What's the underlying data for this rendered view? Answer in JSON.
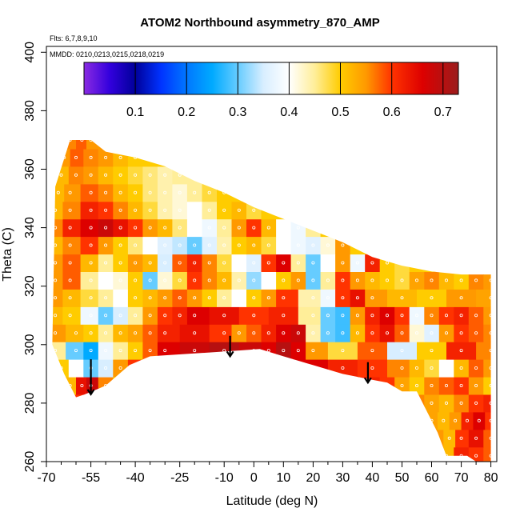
{
  "chart_data": {
    "type": "heatmap",
    "title": "ATOM2 Northbound asymmetry_870_AMP",
    "flights_note": "Flts: 6,7,8,9,10",
    "dates_note": "MMDD: 0210,0213,0215,0218,0219",
    "xlabel": "Latitude (deg N)",
    "ylabel": "Theta (C)",
    "xlim": [
      -70,
      82
    ],
    "ylim": [
      260,
      402
    ],
    "x_ticks": [
      -70,
      -55,
      -40,
      -25,
      -10,
      0,
      10,
      20,
      30,
      40,
      50,
      60,
      70,
      80
    ],
    "x_tick_labels": [
      "-70",
      "-55",
      "-40",
      "-25",
      "-10",
      "0",
      "10",
      "20",
      "30",
      "40",
      "50",
      "60",
      "70",
      "80"
    ],
    "x_minor_ticks": [
      -65,
      -60,
      -50,
      -45,
      -35,
      -30,
      -20,
      -15,
      -5,
      5,
      15,
      25,
      35,
      45,
      55,
      65,
      75
    ],
    "y_ticks": [
      260,
      280,
      300,
      320,
      340,
      360,
      380,
      400
    ],
    "y_tick_labels": [
      "260",
      "280",
      "300",
      "320",
      "340",
      "360",
      "380",
      "400"
    ],
    "colorbar": {
      "range": [
        0.0,
        0.73
      ],
      "ticks": [
        0.1,
        0.2,
        0.3,
        0.4,
        0.5,
        0.6,
        0.7
      ],
      "tick_labels": [
        "0.1",
        "0.2",
        "0.3",
        "0.4",
        "0.5",
        "0.6",
        "0.7"
      ],
      "stops": [
        {
          "v": 0.0,
          "c": "#8a2be2"
        },
        {
          "v": 0.05,
          "c": "#3300dd"
        },
        {
          "v": 0.1,
          "c": "#00009a"
        },
        {
          "v": 0.15,
          "c": "#0033ff"
        },
        {
          "v": 0.2,
          "c": "#0077ff"
        },
        {
          "v": 0.25,
          "c": "#00aaff"
        },
        {
          "v": 0.3,
          "c": "#66ccff"
        },
        {
          "v": 0.35,
          "c": "#d8eeff"
        },
        {
          "v": 0.4,
          "c": "#ffffff"
        },
        {
          "v": 0.45,
          "c": "#ffee99"
        },
        {
          "v": 0.5,
          "c": "#ffcc00"
        },
        {
          "v": 0.55,
          "c": "#ff9900"
        },
        {
          "v": 0.6,
          "c": "#ff3300"
        },
        {
          "v": 0.66,
          "c": "#dd0000"
        },
        {
          "v": 0.73,
          "c": "#9b1c1c"
        }
      ]
    },
    "domain_outline": [
      [
        -60,
        282
      ],
      [
        -57,
        283
      ],
      [
        -50,
        286
      ],
      [
        -42,
        293
      ],
      [
        -35,
        296
      ],
      [
        -20,
        297
      ],
      [
        -5,
        298
      ],
      [
        2,
        298.5
      ],
      [
        10,
        296
      ],
      [
        20,
        293
      ],
      [
        30,
        290
      ],
      [
        40,
        288
      ],
      [
        45,
        287
      ],
      [
        50,
        284
      ],
      [
        55,
        284
      ],
      [
        62,
        270
      ],
      [
        65,
        262
      ],
      [
        72,
        262
      ],
      [
        75,
        260
      ],
      [
        80,
        260
      ],
      [
        80,
        324
      ],
      [
        70,
        324
      ],
      [
        60,
        325
      ],
      [
        50,
        327
      ],
      [
        40,
        330
      ],
      [
        30,
        335
      ],
      [
        20,
        339
      ],
      [
        10,
        343
      ],
      [
        0,
        347
      ],
      [
        -10,
        352
      ],
      [
        -20,
        356
      ],
      [
        -30,
        361
      ],
      [
        -40,
        364
      ],
      [
        -50,
        366
      ],
      [
        -55,
        370
      ],
      [
        -62,
        370
      ],
      [
        -67,
        354
      ],
      [
        -68,
        300
      ],
      [
        -64,
        290
      ]
    ],
    "field_rows": [
      {
        "theta": 262,
        "latitude": [
          60,
          65,
          70,
          75,
          80
        ],
        "values": [
          0.56,
          0.52,
          0.62,
          0.6,
          0.58
        ]
      },
      {
        "theta": 268,
        "latitude": [
          58,
          62,
          66,
          70,
          75,
          80
        ],
        "values": [
          0.55,
          0.55,
          0.52,
          0.6,
          0.64,
          0.58
        ]
      },
      {
        "theta": 274,
        "latitude": [
          52,
          56,
          60,
          64,
          68,
          72,
          76,
          80
        ],
        "values": [
          0.56,
          0.58,
          0.54,
          0.52,
          0.55,
          0.62,
          0.66,
          0.6
        ]
      },
      {
        "theta": 280,
        "latitude": [
          -60,
          -55,
          -50,
          -45,
          -40,
          50,
          55,
          60,
          65,
          70,
          75,
          80
        ],
        "values": [
          0.6,
          0.66,
          0.64,
          0.58,
          0.56,
          0.58,
          0.56,
          0.54,
          0.52,
          0.56,
          0.6,
          0.62
        ]
      },
      {
        "theta": 286,
        "latitude": [
          -62,
          -58,
          -55,
          -50,
          -45,
          -40,
          -35,
          -25,
          25,
          30,
          35,
          40,
          45,
          50,
          55,
          60,
          65,
          70,
          75,
          80
        ],
        "values": [
          0.52,
          0.64,
          0.68,
          0.56,
          0.5,
          0.62,
          0.6,
          0.55,
          0.66,
          0.68,
          0.64,
          0.62,
          0.6,
          0.54,
          0.5,
          0.56,
          0.58,
          0.6,
          0.55,
          0.5
        ]
      },
      {
        "theta": 292,
        "latitude": [
          -65,
          -60,
          -55,
          -50,
          -45,
          -40,
          -35,
          -30,
          -20,
          -10,
          0,
          10,
          20,
          30,
          40,
          50,
          55,
          60,
          65,
          70,
          75,
          80
        ],
        "values": [
          0.5,
          0.4,
          0.3,
          0.35,
          0.55,
          0.6,
          0.52,
          0.58,
          0.62,
          0.64,
          0.66,
          0.68,
          0.66,
          0.62,
          0.6,
          0.56,
          0.52,
          0.48,
          0.4,
          0.52,
          0.58,
          0.55
        ]
      },
      {
        "theta": 298,
        "latitude": [
          -67,
          -60,
          -55,
          -50,
          -45,
          -40,
          -35,
          -30,
          -20,
          -10,
          0,
          5,
          10,
          15,
          20,
          30,
          40,
          50,
          60,
          70,
          80
        ],
        "values": [
          0.45,
          0.3,
          0.25,
          0.38,
          0.45,
          0.5,
          0.58,
          0.66,
          0.68,
          0.7,
          0.68,
          0.66,
          0.7,
          0.66,
          0.55,
          0.48,
          0.58,
          0.35,
          0.5,
          0.62,
          0.56
        ]
      },
      {
        "theta": 304,
        "latitude": [
          -67,
          -60,
          -55,
          -50,
          -45,
          -40,
          -35,
          -30,
          -20,
          -10,
          -5,
          0,
          5,
          10,
          15,
          20,
          25,
          30,
          35,
          40,
          45,
          50,
          55,
          60,
          65,
          70,
          75,
          80
        ],
        "values": [
          0.55,
          0.52,
          0.5,
          0.45,
          0.52,
          0.54,
          0.58,
          0.62,
          0.64,
          0.6,
          0.55,
          0.58,
          0.62,
          0.66,
          0.68,
          0.44,
          0.3,
          0.28,
          0.52,
          0.6,
          0.64,
          0.58,
          0.42,
          0.36,
          0.55,
          0.6,
          0.58,
          0.56
        ]
      },
      {
        "theta": 310,
        "latitude": [
          -67,
          -62,
          -55,
          -50,
          -45,
          -40,
          -35,
          -30,
          -25,
          -20,
          -10,
          0,
          10,
          20,
          25,
          30,
          35,
          40,
          45,
          50,
          55,
          60,
          65,
          70,
          75,
          80
        ],
        "values": [
          0.52,
          0.5,
          0.38,
          0.3,
          0.35,
          0.45,
          0.55,
          0.6,
          0.62,
          0.66,
          0.64,
          0.6,
          0.62,
          0.45,
          0.3,
          0.28,
          0.55,
          0.62,
          0.66,
          0.6,
          0.38,
          0.56,
          0.6,
          0.62,
          0.58,
          0.55
        ]
      },
      {
        "theta": 316,
        "latitude": [
          -67,
          -62,
          -55,
          -50,
          -45,
          -40,
          -35,
          -30,
          -25,
          -20,
          -15,
          -10,
          -5,
          0,
          5,
          10,
          20,
          25,
          30,
          35,
          40,
          50,
          60,
          70,
          80
        ],
        "values": [
          0.55,
          0.52,
          0.48,
          0.45,
          0.4,
          0.5,
          0.52,
          0.55,
          0.58,
          0.55,
          0.5,
          0.45,
          0.4,
          0.5,
          0.55,
          0.6,
          0.44,
          0.38,
          0.6,
          0.64,
          0.55,
          0.52,
          0.5,
          0.55,
          0.54
        ]
      },
      {
        "theta": 322,
        "latitude": [
          -67,
          -62,
          -55,
          -50,
          -45,
          -40,
          -35,
          -30,
          -25,
          -20,
          -15,
          -10,
          -5,
          0,
          5,
          10,
          15,
          20,
          25,
          30,
          35,
          40,
          45,
          50,
          55,
          60,
          65,
          70,
          75,
          80
        ],
        "values": [
          0.55,
          0.58,
          0.45,
          0.4,
          0.42,
          0.5,
          0.3,
          0.42,
          0.48,
          0.6,
          0.56,
          0.52,
          0.44,
          0.32,
          0.4,
          0.5,
          0.55,
          0.3,
          0.45,
          0.6,
          0.55,
          0.52,
          0.5,
          0.48,
          0.54,
          0.56,
          0.52,
          0.5,
          0.56,
          0.55
        ]
      },
      {
        "theta": 328,
        "latitude": [
          -67,
          -62,
          -55,
          -50,
          -45,
          -40,
          -35,
          -30,
          -25,
          -20,
          -15,
          -10,
          -5,
          0,
          5,
          10,
          15,
          20,
          25,
          30,
          35,
          40,
          45,
          50,
          55
        ],
        "values": [
          0.55,
          0.58,
          0.52,
          0.45,
          0.5,
          0.55,
          0.52,
          0.35,
          0.58,
          0.62,
          0.56,
          0.48,
          0.4,
          0.36,
          0.6,
          0.66,
          0.45,
          0.3,
          0.4,
          0.55,
          0.38,
          0.62,
          0.5,
          0.48,
          0.5
        ]
      },
      {
        "theta": 334,
        "latitude": [
          -67,
          -62,
          -55,
          -50,
          -45,
          -40,
          -35,
          -30,
          -25,
          -20,
          -15,
          -10,
          -5,
          0,
          5,
          10,
          15,
          20,
          25,
          30,
          35
        ],
        "values": [
          0.52,
          0.56,
          0.6,
          0.55,
          0.5,
          0.46,
          0.4,
          0.36,
          0.34,
          0.3,
          0.36,
          0.44,
          0.5,
          0.52,
          0.48,
          0.4,
          0.38,
          0.36,
          0.42,
          0.55,
          0.5
        ]
      },
      {
        "theta": 340,
        "latitude": [
          -67,
          -62,
          -55,
          -50,
          -45,
          -40,
          -35,
          -30,
          -25,
          -20,
          -15,
          -10,
          -5,
          0,
          5,
          10,
          15,
          20,
          25
        ],
        "values": [
          0.56,
          0.62,
          0.66,
          0.68,
          0.64,
          0.6,
          0.55,
          0.52,
          0.46,
          0.4,
          0.38,
          0.45,
          0.55,
          0.6,
          0.52,
          0.4,
          0.38,
          0.45,
          0.5
        ]
      },
      {
        "theta": 346,
        "latitude": [
          -67,
          -62,
          -55,
          -50,
          -45,
          -40,
          -35,
          -30,
          -25,
          -20,
          -15,
          -10,
          -5,
          0,
          5
        ],
        "values": [
          0.52,
          0.56,
          0.62,
          0.6,
          0.56,
          0.52,
          0.48,
          0.44,
          0.42,
          0.4,
          0.45,
          0.5,
          0.52,
          0.48,
          0.5
        ]
      },
      {
        "theta": 352,
        "latitude": [
          -66,
          -62,
          -55,
          -50,
          -45,
          -40,
          -35,
          -30,
          -25,
          -20,
          -15,
          -10
        ],
        "values": [
          0.52,
          0.55,
          0.58,
          0.56,
          0.52,
          0.5,
          0.46,
          0.44,
          0.42,
          0.45,
          0.48,
          0.5
        ]
      },
      {
        "theta": 358,
        "latitude": [
          -65,
          -60,
          -55,
          -50,
          -45,
          -40,
          -35,
          -30,
          -25
        ],
        "values": [
          0.52,
          0.56,
          0.55,
          0.52,
          0.5,
          0.48,
          0.46,
          0.44,
          0.45
        ]
      },
      {
        "theta": 364,
        "latitude": [
          -64,
          -60,
          -55,
          -50,
          -45,
          -40
        ],
        "values": [
          0.55,
          0.58,
          0.56,
          0.55,
          0.52,
          0.5
        ]
      },
      {
        "theta": 370,
        "latitude": [
          -62,
          -58,
          -55
        ],
        "values": [
          0.56,
          0.58,
          0.55
        ]
      }
    ],
    "descent_arrows": [
      {
        "latitude": -55,
        "theta_start": 295,
        "theta_end": 283
      },
      {
        "latitude": -8,
        "theta_start": 303,
        "theta_end": 296
      },
      {
        "latitude": 38.5,
        "theta_start": 294,
        "theta_end": 287
      }
    ]
  }
}
